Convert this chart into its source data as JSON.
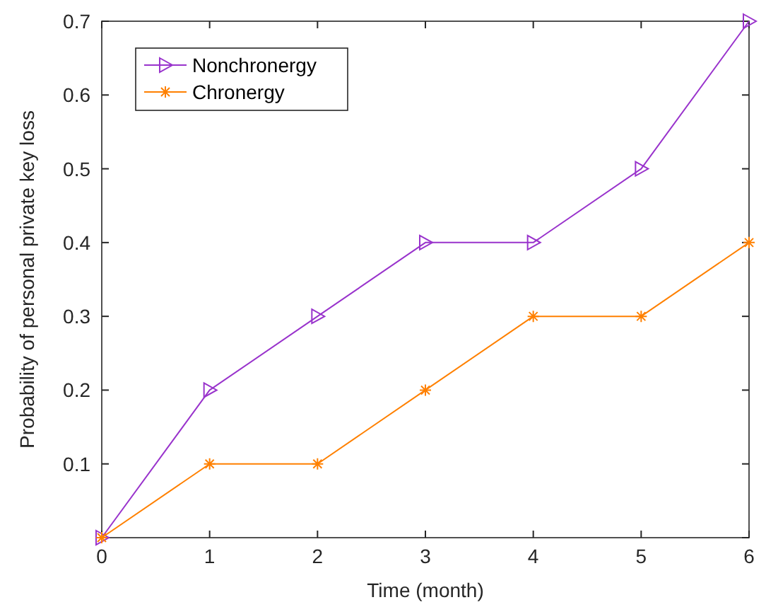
{
  "chart_data": {
    "type": "line",
    "xlabel": "Time (month)",
    "ylabel": "Probability of personal private key loss",
    "x": [
      0,
      1,
      2,
      3,
      4,
      5,
      6
    ],
    "series": [
      {
        "name": "Nonchronergy",
        "color": "#9933cc",
        "values": [
          0,
          0.2,
          0.3,
          0.4,
          0.4,
          0.5,
          0.7
        ],
        "marker": "triangle"
      },
      {
        "name": "Chronergy",
        "color": "#ff8000",
        "values": [
          0,
          0.1,
          0.1,
          0.2,
          0.3,
          0.3,
          0.4
        ],
        "marker": "cross"
      }
    ],
    "xlim": [
      0,
      6
    ],
    "xticks": [
      0,
      1,
      2,
      3,
      4,
      5,
      6
    ],
    "ylim": [
      0,
      0.7
    ],
    "yticks": [
      {
        "value": 0,
        "label": null
      },
      0.1,
      0.2,
      0.3,
      0.4,
      0.5,
      0.6,
      0.7
    ],
    "grid": false,
    "legend": "top left",
    "line_style": "solid"
  }
}
